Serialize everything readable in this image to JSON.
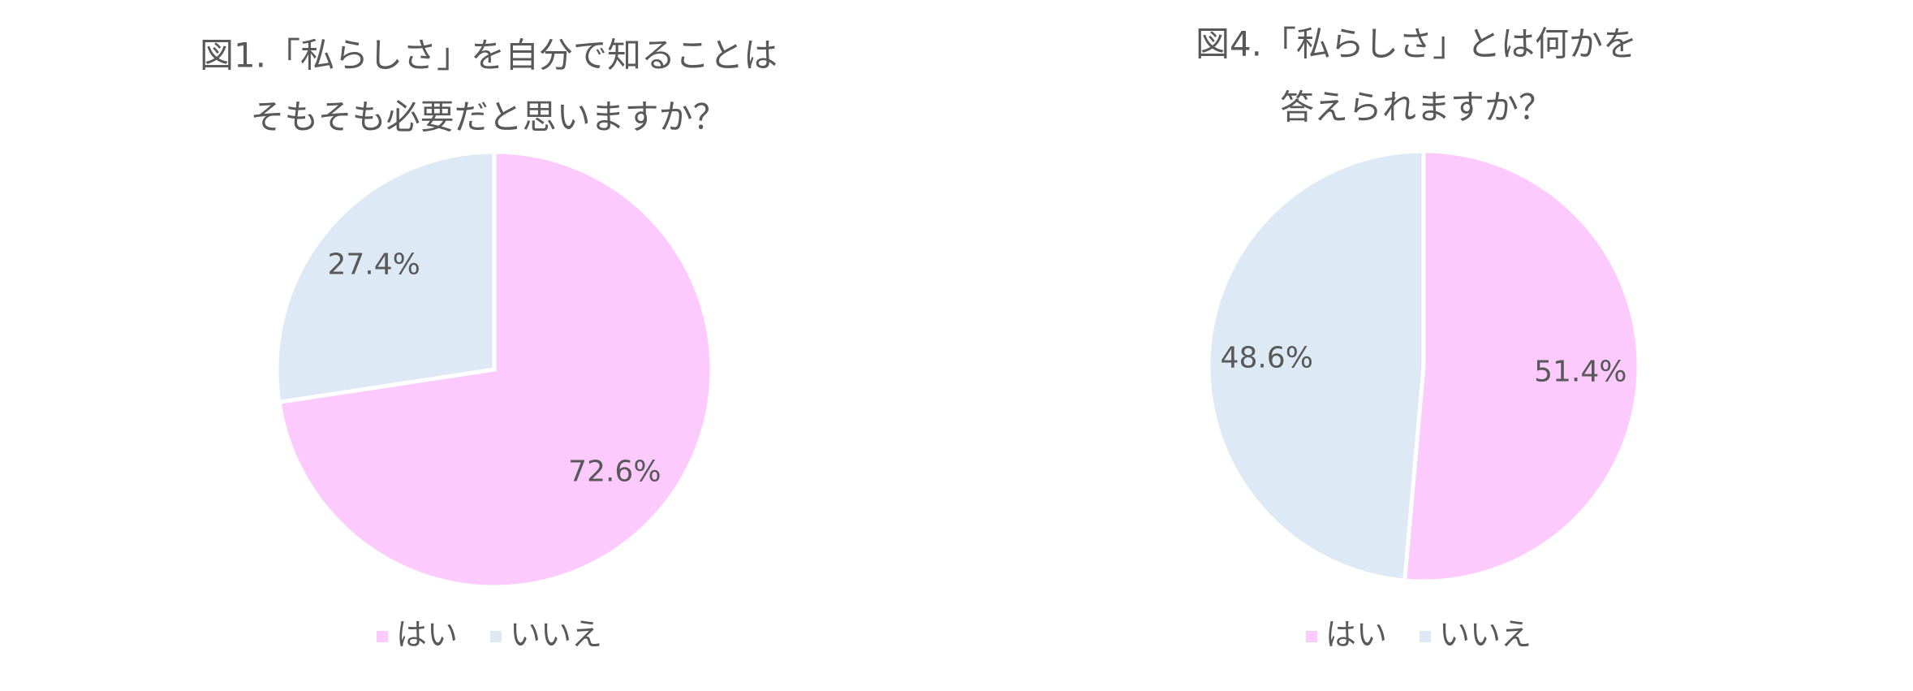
{
  "chart_data": [
    {
      "type": "pie",
      "title": [
        "図1.「私らしさ」を自分で知ることは",
        "そもそも必要だと思いますか？"
      ],
      "categories": [
        "はい",
        "いいえ"
      ],
      "values": [
        72.6,
        27.4
      ],
      "value_labels": [
        "72.6%",
        "27.4%"
      ],
      "colors": [
        "#fccafd",
        "#dde9f5"
      ]
    },
    {
      "type": "pie",
      "title": [
        "図4.「私らしさ」とは何かを",
        "答えられますか？"
      ],
      "categories": [
        "はい",
        "いいえ"
      ],
      "values": [
        51.4,
        48.6
      ],
      "value_labels": [
        "51.4%",
        "48.6%"
      ],
      "colors": [
        "#fccafd",
        "#dde9f5"
      ]
    }
  ]
}
